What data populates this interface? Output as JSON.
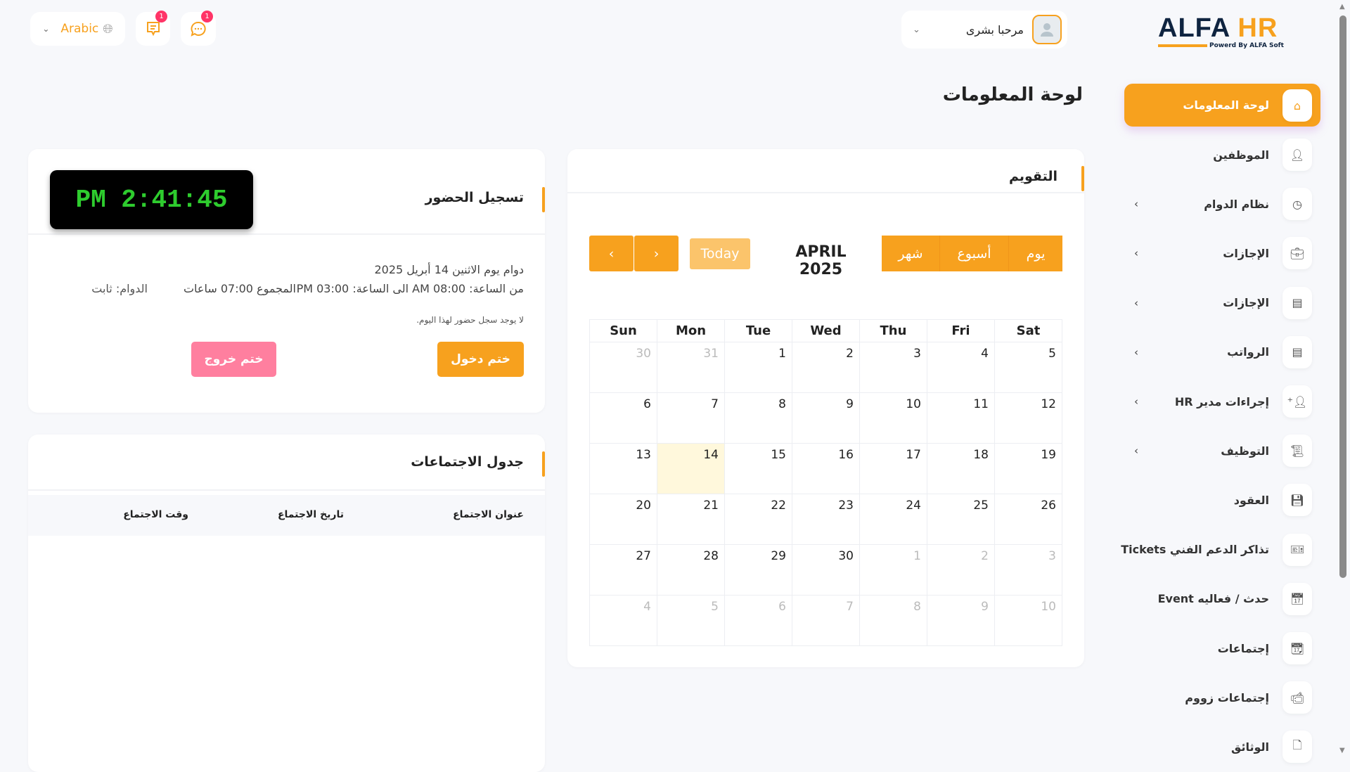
{
  "topbar": {
    "language": "Arabic",
    "messages_badge": "1",
    "chat_badge": "1",
    "user_greeting": "مرحبا بشرى"
  },
  "logo": {
    "text_main": "ALFA",
    "text_accent": "HR",
    "tagline": "Powerd By ALFA Soft"
  },
  "page_title": "لوحة المعلومات",
  "colors": {
    "accent": "#f7a11e",
    "checkout": "#ff7f9f",
    "today_bg": "#fff8dc",
    "badge": "#ff3467"
  },
  "sidebar": {
    "items": [
      {
        "label": "لوحة المعلومات",
        "icon": "home-icon",
        "active": true,
        "chevron": false
      },
      {
        "label": "الموظفين",
        "icon": "user-icon",
        "chevron": false
      },
      {
        "label": "نظام الدوام",
        "icon": "clock-icon",
        "chevron": true
      },
      {
        "label": "الإجازات",
        "icon": "briefcase-icon",
        "chevron": true
      },
      {
        "label": "الإجازات",
        "icon": "receipt-icon",
        "chevron": true
      },
      {
        "label": "الرواتب",
        "icon": "receipt-icon",
        "chevron": true
      },
      {
        "label": "إجراءات مدير HR",
        "icon": "user-plus-icon",
        "chevron": true
      },
      {
        "label": "التوظيف",
        "icon": "scroll-icon",
        "chevron": true
      },
      {
        "label": "العقود",
        "icon": "save-icon",
        "chevron": false
      },
      {
        "label": "تذاكر الدعم الفني Tickets",
        "icon": "ticket-icon",
        "chevron": false
      },
      {
        "label": "حدث / فعاليه Event",
        "icon": "calendar-icon",
        "chevron": false
      },
      {
        "label": "إجتماعات",
        "icon": "calendar-clock-icon",
        "chevron": false
      },
      {
        "label": "إجتماعات زووم",
        "icon": "video-icon",
        "chevron": false
      },
      {
        "label": "الوثائق",
        "icon": "file-icon",
        "chevron": false
      }
    ]
  },
  "calendar": {
    "title": "التقويم",
    "today_label": "Today",
    "month_label": "APRIL 2025",
    "views": [
      "شهر",
      "أسبوع",
      "يوم"
    ],
    "weekdays": [
      "Sun",
      "Mon",
      "Tue",
      "Wed",
      "Thu",
      "Fri",
      "Sat"
    ],
    "weeks": [
      [
        "30",
        "31",
        "1",
        "2",
        "3",
        "4",
        "5"
      ],
      [
        "6",
        "7",
        "8",
        "9",
        "10",
        "11",
        "12"
      ],
      [
        "13",
        "14",
        "15",
        "16",
        "17",
        "18",
        "19"
      ],
      [
        "20",
        "21",
        "22",
        "23",
        "24",
        "25",
        "26"
      ],
      [
        "27",
        "28",
        "29",
        "30",
        "1",
        "2",
        "3"
      ],
      [
        "4",
        "5",
        "6",
        "7",
        "8",
        "9",
        "10"
      ]
    ],
    "today": "14"
  },
  "attendance": {
    "title": "تسجيل الحضور",
    "clock": "PM 2:41:45",
    "shift_date": "دوام يوم الاثنين 14 أبريل 2025",
    "shift_hours": "من الساعة: 08:00 AM الى الساعة: 03:00 PM",
    "total": "المجموع 07:00 ساعات",
    "shift_type": "الدوام: ثابت",
    "no_record": "لا يوجد سجل حضور لهذا اليوم.",
    "check_in": "ختم دخول",
    "check_out": "ختم خروج"
  },
  "meetings": {
    "title": "جدول الاجتماعات",
    "columns": [
      "عنوان الاجتماع",
      "تاريخ الاجتماع",
      "وقت الاجتماع"
    ]
  }
}
